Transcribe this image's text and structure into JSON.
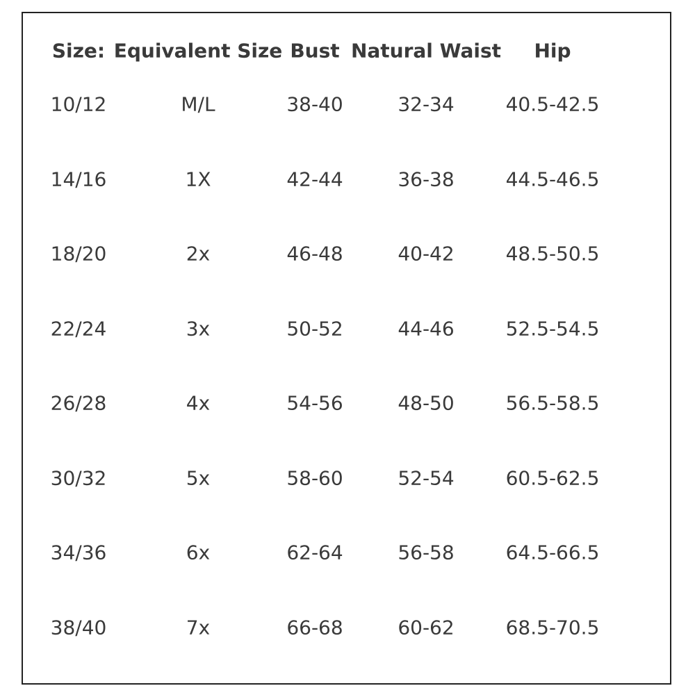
{
  "table": {
    "header": [
      "Size:",
      "Equivalent Size",
      "Bust",
      "Natural Waist",
      "Hip"
    ],
    "rows": [
      [
        "10/12",
        "M/L",
        "38-40",
        "32-34",
        "40.5-42.5"
      ],
      [
        "14/16",
        "1X",
        "42-44",
        "36-38",
        "44.5-46.5"
      ],
      [
        "18/20",
        "2x",
        "46-48",
        "40-42",
        "48.5-50.5"
      ],
      [
        "22/24",
        "3x",
        "50-52",
        "44-46",
        "52.5-54.5"
      ],
      [
        "26/28",
        "4x",
        "54-56",
        "48-50",
        "56.5-58.5"
      ],
      [
        "30/32",
        "5x",
        "58-60",
        "52-54",
        "60.5-62.5"
      ],
      [
        "34/36",
        "6x",
        "62-64",
        "56-58",
        "64.5-66.5"
      ],
      [
        "38/40",
        "7x",
        "66-68",
        "60-62",
        "68.5-70.5"
      ]
    ]
  }
}
